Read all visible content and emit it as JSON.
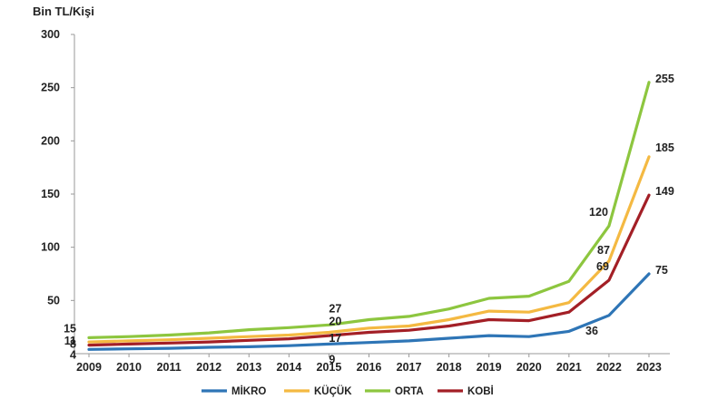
{
  "chart_data": {
    "type": "line",
    "ylabel": "Bin TL/Kişi",
    "ylim": [
      0,
      300
    ],
    "yticks": [
      50,
      100,
      150,
      200,
      250,
      300
    ],
    "grid": false,
    "legend_position": "bottom",
    "x": [
      "2009",
      "2010",
      "2011",
      "2012",
      "2013",
      "2014",
      "2015",
      "2016",
      "2017",
      "2018",
      "2019",
      "2020",
      "2021",
      "2022",
      "2023"
    ],
    "series": [
      {
        "name": "MİKRO",
        "color": "#2e75b6",
        "values": [
          4,
          4.5,
          5,
          6,
          6.5,
          7.5,
          9,
          10.5,
          12,
          14.5,
          17,
          16,
          21,
          36,
          75
        ],
        "labels": [
          {
            "i": 0,
            "text": "4"
          },
          {
            "i": 6,
            "text": "9"
          },
          {
            "i": 13,
            "text": "36"
          },
          {
            "i": 14,
            "text": "75"
          }
        ]
      },
      {
        "name": "KÜÇÜK",
        "color": "#f4b942",
        "values": [
          11,
          12,
          13,
          14.5,
          16,
          17.5,
          20,
          24,
          26,
          32,
          40,
          39,
          48,
          87,
          185
        ],
        "labels": [
          {
            "i": 0,
            "text": "11"
          },
          {
            "i": 6,
            "text": "20"
          },
          {
            "i": 13,
            "text": "87"
          },
          {
            "i": 14,
            "text": "185"
          }
        ]
      },
      {
        "name": "ORTA",
        "color": "#8dc63f",
        "values": [
          15,
          16,
          17.5,
          19.5,
          22.5,
          24.5,
          27,
          32,
          35,
          42,
          52,
          54,
          68,
          120,
          255
        ],
        "labels": [
          {
            "i": 0,
            "text": "15"
          },
          {
            "i": 6,
            "text": "27"
          },
          {
            "i": 13,
            "text": "120"
          },
          {
            "i": 14,
            "text": "255"
          }
        ]
      },
      {
        "name": "KOBİ",
        "color": "#a31f26",
        "values": [
          8,
          9,
          10,
          11,
          12.5,
          14,
          17,
          20,
          22,
          26,
          32,
          31,
          39,
          69,
          149
        ],
        "labels": [
          {
            "i": 0,
            "text": "8"
          },
          {
            "i": 6,
            "text": "17"
          },
          {
            "i": 13,
            "text": "69"
          },
          {
            "i": 14,
            "text": "149"
          }
        ]
      }
    ]
  }
}
